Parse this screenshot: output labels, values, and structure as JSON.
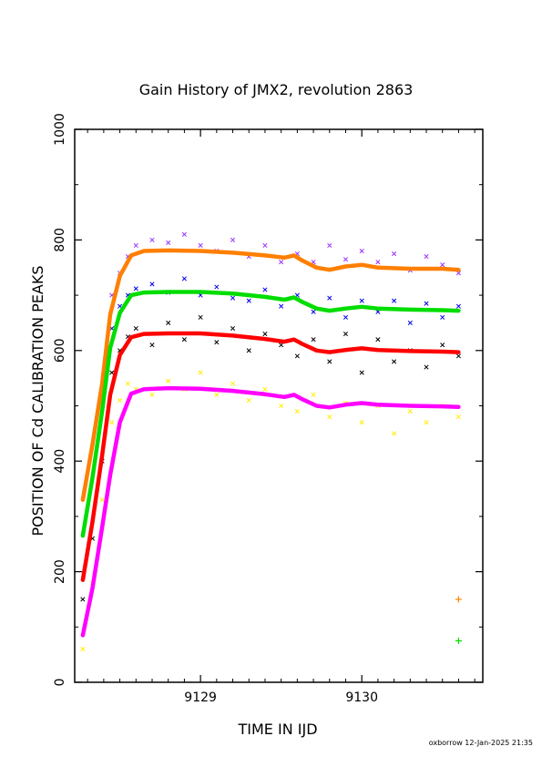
{
  "chart_data": {
    "type": "scatter",
    "title": "Gain History of JMX2, revolution 2863",
    "xlabel": "TIME IN IJD",
    "ylabel": "POSITION OF Cd CALIBRATION PEAKS",
    "footer": "oxborrow 12-Jan-2025 21:35",
    "xlim": [
      9128.22,
      9130.75
    ],
    "ylim": [
      0,
      1000
    ],
    "x_ticks": [
      9129,
      9130
    ],
    "y_ticks": [
      0,
      200,
      400,
      600,
      800,
      1000
    ],
    "grid": false,
    "legend": "none",
    "series": [
      {
        "kind": "smoothed",
        "color": "#ff7f00",
        "points": [
          [
            9128.27,
            330
          ],
          [
            9128.33,
            430
          ],
          [
            9128.39,
            540
          ],
          [
            9128.44,
            665
          ],
          [
            9128.5,
            735
          ],
          [
            9128.57,
            772
          ],
          [
            9128.65,
            780
          ],
          [
            9128.8,
            781
          ],
          [
            9129.0,
            780
          ],
          [
            9129.2,
            777
          ],
          [
            9129.4,
            772
          ],
          [
            9129.52,
            768
          ],
          [
            9129.58,
            772
          ],
          [
            9129.63,
            763
          ],
          [
            9129.72,
            750
          ],
          [
            9129.8,
            746
          ],
          [
            9129.9,
            752
          ],
          [
            9130.0,
            755
          ],
          [
            9130.1,
            750
          ],
          [
            9130.3,
            748
          ],
          [
            9130.5,
            748
          ],
          [
            9130.6,
            746
          ]
        ]
      },
      {
        "kind": "smoothed",
        "color": "#00dd00",
        "points": [
          [
            9128.27,
            265
          ],
          [
            9128.33,
            370
          ],
          [
            9128.39,
            490
          ],
          [
            9128.44,
            605
          ],
          [
            9128.5,
            668
          ],
          [
            9128.57,
            700
          ],
          [
            9128.65,
            705
          ],
          [
            9128.8,
            706
          ],
          [
            9129.0,
            706
          ],
          [
            9129.2,
            703
          ],
          [
            9129.4,
            697
          ],
          [
            9129.52,
            692
          ],
          [
            9129.58,
            696
          ],
          [
            9129.63,
            688
          ],
          [
            9129.72,
            676
          ],
          [
            9129.8,
            672
          ],
          [
            9129.9,
            676
          ],
          [
            9130.0,
            679
          ],
          [
            9130.1,
            676
          ],
          [
            9130.3,
            674
          ],
          [
            9130.5,
            673
          ],
          [
            9130.6,
            672
          ]
        ]
      },
      {
        "kind": "smoothed",
        "color": "#ff0000",
        "points": [
          [
            9128.27,
            185
          ],
          [
            9128.33,
            290
          ],
          [
            9128.39,
            410
          ],
          [
            9128.44,
            520
          ],
          [
            9128.5,
            592
          ],
          [
            9128.57,
            624
          ],
          [
            9128.65,
            630
          ],
          [
            9128.8,
            631
          ],
          [
            9129.0,
            631
          ],
          [
            9129.2,
            627
          ],
          [
            9129.4,
            621
          ],
          [
            9129.52,
            616
          ],
          [
            9129.58,
            620
          ],
          [
            9129.63,
            612
          ],
          [
            9129.72,
            600
          ],
          [
            9129.8,
            597
          ],
          [
            9129.9,
            601
          ],
          [
            9130.0,
            604
          ],
          [
            9130.1,
            601
          ],
          [
            9130.3,
            599
          ],
          [
            9130.5,
            598
          ],
          [
            9130.6,
            597
          ]
        ]
      },
      {
        "kind": "smoothed",
        "color": "#ff00ff",
        "points": [
          [
            9128.27,
            85
          ],
          [
            9128.33,
            170
          ],
          [
            9128.39,
            280
          ],
          [
            9128.44,
            375
          ],
          [
            9128.5,
            470
          ],
          [
            9128.57,
            522
          ],
          [
            9128.65,
            530
          ],
          [
            9128.8,
            532
          ],
          [
            9129.0,
            531
          ],
          [
            9129.2,
            527
          ],
          [
            9129.4,
            521
          ],
          [
            9129.52,
            516
          ],
          [
            9129.58,
            520
          ],
          [
            9129.63,
            512
          ],
          [
            9129.72,
            500
          ],
          [
            9129.8,
            497
          ],
          [
            9129.9,
            502
          ],
          [
            9130.0,
            505
          ],
          [
            9130.1,
            502
          ],
          [
            9130.3,
            500
          ],
          [
            9130.5,
            499
          ],
          [
            9130.6,
            498
          ]
        ]
      },
      {
        "kind": "raw",
        "color": "#9933ff",
        "points": [
          [
            9128.45,
            700
          ],
          [
            9128.5,
            740
          ],
          [
            9128.55,
            770
          ],
          [
            9128.6,
            790
          ],
          [
            9128.7,
            800
          ],
          [
            9128.8,
            795
          ],
          [
            9128.9,
            810
          ],
          [
            9129.0,
            790
          ],
          [
            9129.1,
            780
          ],
          [
            9129.2,
            800
          ],
          [
            9129.3,
            770
          ],
          [
            9129.4,
            790
          ],
          [
            9129.5,
            760
          ],
          [
            9129.6,
            775
          ],
          [
            9129.7,
            760
          ],
          [
            9129.8,
            790
          ],
          [
            9129.9,
            765
          ],
          [
            9130.0,
            780
          ],
          [
            9130.1,
            760
          ],
          [
            9130.2,
            775
          ],
          [
            9130.3,
            745
          ],
          [
            9130.4,
            770
          ],
          [
            9130.5,
            755
          ],
          [
            9130.6,
            740
          ]
        ]
      },
      {
        "kind": "raw",
        "color": "#0000ee",
        "points": [
          [
            9128.45,
            640
          ],
          [
            9128.5,
            680
          ],
          [
            9128.55,
            700
          ],
          [
            9128.6,
            712
          ],
          [
            9128.7,
            720
          ],
          [
            9128.8,
            705
          ],
          [
            9128.9,
            730
          ],
          [
            9129.0,
            700
          ],
          [
            9129.1,
            715
          ],
          [
            9129.2,
            695
          ],
          [
            9129.3,
            690
          ],
          [
            9129.4,
            710
          ],
          [
            9129.5,
            680
          ],
          [
            9129.6,
            700
          ],
          [
            9129.7,
            670
          ],
          [
            9129.8,
            695
          ],
          [
            9129.9,
            660
          ],
          [
            9130.0,
            690
          ],
          [
            9130.1,
            670
          ],
          [
            9130.2,
            690
          ],
          [
            9130.3,
            650
          ],
          [
            9130.4,
            685
          ],
          [
            9130.5,
            660
          ],
          [
            9130.6,
            680
          ]
        ]
      },
      {
        "kind": "raw",
        "color": "#000000",
        "points": [
          [
            9128.27,
            150
          ],
          [
            9128.33,
            260
          ],
          [
            9128.39,
            400
          ],
          [
            9128.45,
            560
          ],
          [
            9128.5,
            600
          ],
          [
            9128.55,
            625
          ],
          [
            9128.6,
            640
          ],
          [
            9128.7,
            610
          ],
          [
            9128.8,
            650
          ],
          [
            9128.9,
            620
          ],
          [
            9129.0,
            660
          ],
          [
            9129.1,
            615
          ],
          [
            9129.2,
            640
          ],
          [
            9129.3,
            600
          ],
          [
            9129.4,
            630
          ],
          [
            9129.5,
            610
          ],
          [
            9129.6,
            590
          ],
          [
            9129.7,
            620
          ],
          [
            9129.8,
            580
          ],
          [
            9129.9,
            630
          ],
          [
            9130.0,
            560
          ],
          [
            9130.1,
            620
          ],
          [
            9130.2,
            580
          ],
          [
            9130.3,
            600
          ],
          [
            9130.4,
            570
          ],
          [
            9130.5,
            610
          ],
          [
            9130.6,
            590
          ]
        ]
      },
      {
        "kind": "raw",
        "color": "#ffee00",
        "points": [
          [
            9128.27,
            60
          ],
          [
            9128.33,
            180
          ],
          [
            9128.39,
            330
          ],
          [
            9128.45,
            470
          ],
          [
            9128.5,
            510
          ],
          [
            9128.55,
            540
          ],
          [
            9128.6,
            530
          ],
          [
            9128.7,
            520
          ],
          [
            9128.8,
            545
          ],
          [
            9128.9,
            530
          ],
          [
            9129.0,
            560
          ],
          [
            9129.1,
            520
          ],
          [
            9129.2,
            540
          ],
          [
            9129.3,
            510
          ],
          [
            9129.4,
            530
          ],
          [
            9129.5,
            500
          ],
          [
            9129.6,
            490
          ],
          [
            9129.7,
            520
          ],
          [
            9129.8,
            480
          ],
          [
            9129.9,
            505
          ],
          [
            9130.0,
            470
          ],
          [
            9130.1,
            500
          ],
          [
            9130.2,
            450
          ],
          [
            9130.3,
            490
          ],
          [
            9130.4,
            470
          ],
          [
            9130.5,
            500
          ],
          [
            9130.6,
            480
          ]
        ]
      },
      {
        "kind": "single",
        "color": "#ff7f00",
        "points": [
          [
            9130.6,
            150
          ]
        ]
      },
      {
        "kind": "single",
        "color": "#00dd00",
        "points": [
          [
            9130.6,
            75
          ]
        ]
      }
    ]
  }
}
